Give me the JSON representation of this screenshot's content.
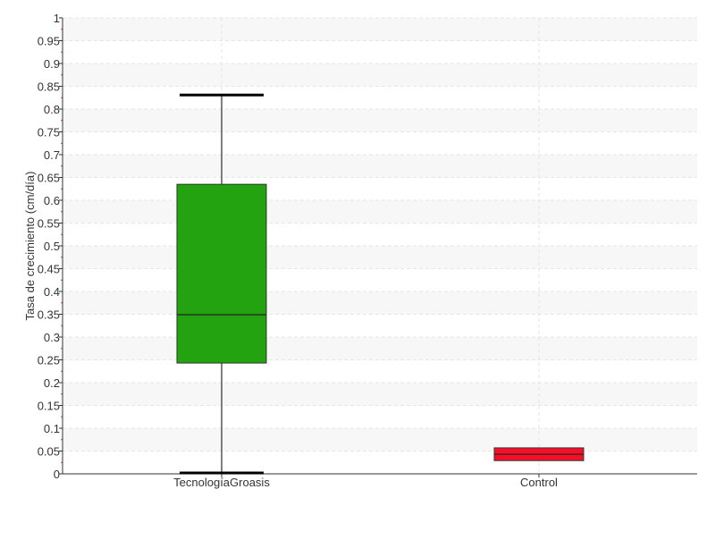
{
  "chart_data": {
    "type": "boxplot",
    "ylabel": "Tasa de crecimiento (cm/día)",
    "xlabel": "",
    "ylim": [
      0,
      1
    ],
    "yticks": [
      "0",
      "0.05",
      "0.1",
      "0.15",
      "0.2",
      "0.25",
      "0.3",
      "0.35",
      "0.4",
      "0.45",
      "0.5",
      "0.55",
      "0.6",
      "0.65",
      "0.7",
      "0.75",
      "0.8",
      "0.85",
      "0.9",
      "0.95",
      "1"
    ],
    "grid": true,
    "categories": [
      "TecnologíaGroasis",
      "Control"
    ],
    "boxes": [
      {
        "category": "TecnologíaGroasis",
        "min": 0.002,
        "q1": 0.243,
        "median": 0.349,
        "q3": 0.635,
        "max": 0.831,
        "color": "#22a30f"
      },
      {
        "category": "Control",
        "min": 0.029,
        "q1": 0.029,
        "median": 0.043,
        "q3": 0.057,
        "max": 0.057,
        "color": "#f5102a"
      }
    ]
  }
}
